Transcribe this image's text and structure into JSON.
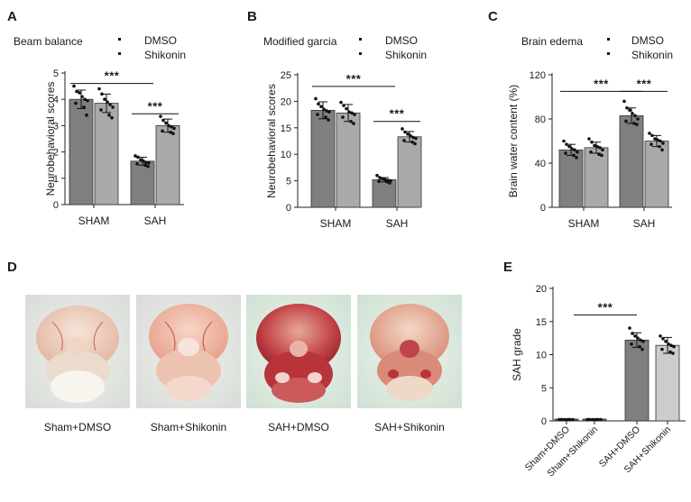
{
  "colors": {
    "dmso": "#7f7f7f",
    "shikonin": "#a9a9a9",
    "e_shikonin": "#cccccc",
    "sham_bar": "#5a5a5a",
    "dot": "#111111"
  },
  "chart_data": [
    {
      "panel": "A",
      "type": "bar",
      "title": "",
      "legend_title": "Beam balance",
      "legend": [
        "DMSO",
        "Shikonin"
      ],
      "categories": [
        "SHAM",
        "SAH"
      ],
      "ylabel": "Neurobehavioral scores",
      "xlabel": "",
      "ylim": [
        0,
        5
      ],
      "yticks": [
        0,
        1,
        2,
        3,
        4,
        5
      ],
      "series": [
        {
          "name": "DMSO",
          "values": [
            4.0,
            1.65
          ],
          "errors": [
            0.35,
            0.15
          ],
          "points": [
            [
              4.5,
              4.3,
              4.25,
              4.1,
              4.0,
              3.95,
              3.85,
              3.7,
              3.4
            ],
            [
              1.85,
              1.8,
              1.7,
              1.65,
              1.6,
              1.58,
              1.55,
              1.5,
              1.45
            ]
          ]
        },
        {
          "name": "Shikonin",
          "values": [
            3.85,
            3.0
          ],
          "errors": [
            0.35,
            0.25
          ],
          "points": [
            [
              4.4,
              4.2,
              4.0,
              3.9,
              3.8,
              3.7,
              3.6,
              3.4,
              3.3
            ],
            [
              3.35,
              3.2,
              3.1,
              3.0,
              2.95,
              2.9,
              2.8,
              2.75,
              2.7
            ]
          ]
        }
      ],
      "annotations": [
        {
          "text": "***",
          "from": [
            0,
            0
          ],
          "to": [
            1,
            0
          ],
          "y": 4.6
        },
        {
          "text": "***",
          "from": [
            1,
            0
          ],
          "to": [
            1,
            1
          ],
          "y": 3.45
        }
      ]
    },
    {
      "panel": "B",
      "type": "bar",
      "title": "",
      "legend_title": "Modified garcia",
      "legend": [
        "DMSO",
        "Shikonin"
      ],
      "categories": [
        "SHAM",
        "SAH"
      ],
      "ylabel": "Neurobehavioral scores",
      "xlabel": "",
      "ylim": [
        0,
        25
      ],
      "yticks": [
        0,
        5,
        10,
        15,
        20,
        25
      ],
      "series": [
        {
          "name": "DMSO",
          "values": [
            18.3,
            5.2
          ],
          "errors": [
            1.6,
            0.4
          ],
          "points": [
            [
              20.5,
              19.5,
              19.0,
              18.5,
              18.2,
              18.0,
              17.5,
              17.0,
              16.5
            ],
            [
              6.0,
              5.6,
              5.4,
              5.2,
              5.1,
              5.0,
              4.9,
              4.8,
              4.6
            ]
          ]
        },
        {
          "name": "Shikonin",
          "values": [
            17.8,
            13.3
          ],
          "errors": [
            1.6,
            1.0
          ],
          "points": [
            [
              19.8,
              19.2,
              18.6,
              18.0,
              17.8,
              17.5,
              17.0,
              16.2,
              15.8
            ],
            [
              14.8,
              14.2,
              13.8,
              13.5,
              13.2,
              13.0,
              12.6,
              12.3,
              12.0
            ]
          ]
        }
      ],
      "annotations": [
        {
          "text": "***",
          "from": [
            0,
            0
          ],
          "to": [
            1,
            0
          ],
          "y": 22.8
        },
        {
          "text": "***",
          "from": [
            1,
            0
          ],
          "to": [
            1,
            1
          ],
          "y": 16.2
        }
      ]
    },
    {
      "panel": "C",
      "type": "bar",
      "title": "",
      "legend_title": "Brain edema",
      "legend": [
        "DMSO",
        "Shikonin"
      ],
      "categories": [
        "SHAM",
        "SAH"
      ],
      "ylabel": "Brain water content (%)",
      "xlabel": "",
      "ylim": [
        0,
        120
      ],
      "yticks": [
        0,
        40,
        80,
        120
      ],
      "series": [
        {
          "name": "DMSO",
          "values": [
            52,
            83
          ],
          "errors": [
            5,
            7
          ],
          "points": [
            [
              60,
              57,
              55,
              53,
              52,
              50,
              49,
              47,
              45
            ],
            [
              96,
              90,
              88,
              85,
              83,
              80,
              78,
              76,
              75
            ]
          ]
        },
        {
          "name": "Shikonin",
          "values": [
            54,
            60
          ],
          "errors": [
            5,
            5
          ],
          "points": [
            [
              62,
              59,
              56,
              55,
              54,
              52,
              50,
              48,
              47
            ],
            [
              67,
              65,
              62,
              61,
              60,
              58,
              57,
              55,
              52
            ]
          ]
        }
      ],
      "annotations": [
        {
          "text": "***",
          "from": [
            0,
            0
          ],
          "to": [
            1,
            0
          ],
          "y": 105
        },
        {
          "text": "***",
          "from": [
            1,
            0
          ],
          "to": [
            1,
            1
          ],
          "y": 105
        }
      ]
    },
    {
      "panel": "E",
      "type": "bar",
      "title": "",
      "legend": [],
      "categories": [
        "Sham+DMSO",
        "Sham+Shikonin",
        "SAH+DMSO",
        "SAH+Shikonin"
      ],
      "ylabel": "SAH grade",
      "xlabel": "",
      "ylim": [
        0,
        20
      ],
      "yticks": [
        0,
        5,
        10,
        15,
        20
      ],
      "values": [
        0.2,
        0.2,
        12.2,
        11.4
      ],
      "errors": [
        0,
        0,
        1.1,
        1.2
      ],
      "points": [
        [
          0.2,
          0.2,
          0.2,
          0.2,
          0.2,
          0.2,
          0.2,
          0.2
        ],
        [
          0.2,
          0.2,
          0.2,
          0.2,
          0.2,
          0.2,
          0.2,
          0.2
        ],
        [
          14.0,
          13.2,
          12.8,
          12.5,
          12.2,
          12.0,
          11.6,
          11.2,
          10.8
        ],
        [
          12.8,
          12.4,
          12.0,
          11.6,
          11.4,
          11.2,
          10.8,
          10.4,
          10.2
        ]
      ],
      "annotations": [
        {
          "text": "***",
          "from": 0,
          "to": 2,
          "y": 16
        }
      ]
    }
  ],
  "panel_d": {
    "label": "D",
    "captions": [
      "Sham+DMSO",
      "Sham+Shikonin",
      "SAH+DMSO",
      "SAH+Shikonin"
    ]
  }
}
